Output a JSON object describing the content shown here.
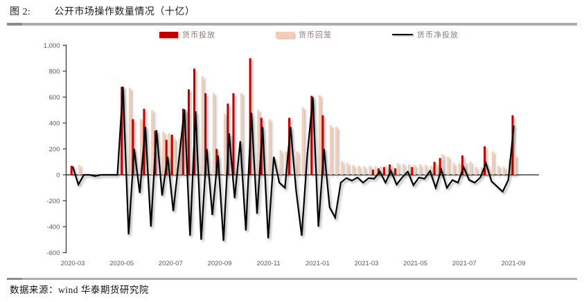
{
  "header": {
    "figure_label": "图 2:",
    "title": "公开市场操作数量情况（十亿）"
  },
  "footer": {
    "source": "数据来源：wind 华泰期货研究院"
  },
  "legend": [
    {
      "label": "货币投放",
      "color": "#c00000",
      "type": "bar"
    },
    {
      "label": "货币回笼",
      "color": "#f4cdb4",
      "type": "bar"
    },
    {
      "label": "货币净投放",
      "color": "#000000",
      "type": "line"
    }
  ],
  "chart_data": {
    "type": "bar",
    "title": "公开市场操作数量情况（十亿）",
    "ylabel": "十亿",
    "xlabel": "",
    "ylim": [
      -600,
      1000
    ],
    "grid": false,
    "legend_position": "top",
    "axis_color": "#595959",
    "bar_color_injection": "#c00000",
    "bar_color_withdrawal": "#f4cdb4",
    "line_color_net": "#000000",
    "xticks": [
      "2020-03",
      "2020-05",
      "2020-07",
      "2020-09",
      "2020-11",
      "2021-01",
      "2021-03",
      "2021-05",
      "2021-07",
      "2021-09"
    ],
    "yticks": [
      1000,
      800,
      600,
      400,
      200,
      0,
      -200,
      -400,
      -600
    ],
    "ytick_labels": [
      "1,000",
      "800",
      "600",
      "400",
      "200",
      "0",
      "-200",
      "-400",
      "-600"
    ],
    "x": [
      "2020-03-06",
      "2020-03-13",
      "2020-03-20",
      "2020-03-27",
      "2020-04-03",
      "2020-04-10",
      "2020-04-17",
      "2020-04-24",
      "2020-05-01",
      "2020-05-08",
      "2020-05-15",
      "2020-05-22",
      "2020-05-29",
      "2020-06-05",
      "2020-06-12",
      "2020-06-19",
      "2020-06-26",
      "2020-07-03",
      "2020-07-10",
      "2020-07-17",
      "2020-07-24",
      "2020-07-31",
      "2020-08-07",
      "2020-08-14",
      "2020-08-21",
      "2020-08-28",
      "2020-09-04",
      "2020-09-11",
      "2020-09-18",
      "2020-09-25",
      "2020-10-02",
      "2020-10-09",
      "2020-10-16",
      "2020-10-23",
      "2020-10-30",
      "2020-11-06",
      "2020-11-13",
      "2020-11-20",
      "2020-11-27",
      "2020-12-04",
      "2020-12-11",
      "2020-12-18",
      "2020-12-25",
      "2021-01-01",
      "2021-01-08",
      "2021-01-15",
      "2021-01-22",
      "2021-01-29",
      "2021-02-05",
      "2021-02-12",
      "2021-02-19",
      "2021-02-26",
      "2021-03-05",
      "2021-03-12",
      "2021-03-19",
      "2021-03-26",
      "2021-04-02",
      "2021-04-09",
      "2021-04-16",
      "2021-04-23",
      "2021-04-30",
      "2021-05-07",
      "2021-05-14",
      "2021-05-21",
      "2021-05-28",
      "2021-06-04",
      "2021-06-11",
      "2021-06-18",
      "2021-06-25",
      "2021-07-02",
      "2021-07-09",
      "2021-07-16",
      "2021-07-23",
      "2021-07-30",
      "2021-08-06",
      "2021-08-13",
      "2021-08-20",
      "2021-08-27",
      "2021-09-03",
      "2021-09-10"
    ],
    "series": [
      {
        "name": "货币投放",
        "type": "bar",
        "color": "#c00000",
        "values": [
          70,
          0,
          0,
          0,
          0,
          0,
          0,
          0,
          0,
          680,
          0,
          430,
          0,
          510,
          0,
          340,
          0,
          270,
          310,
          0,
          510,
          660,
          820,
          0,
          630,
          0,
          200,
          0,
          550,
          630,
          0,
          0,
          900,
          0,
          440,
          0,
          0,
          0,
          0,
          440,
          0,
          0,
          0,
          610,
          0,
          460,
          0,
          0,
          0,
          0,
          0,
          0,
          0,
          0,
          40,
          50,
          60,
          80,
          50,
          0,
          0,
          60,
          0,
          0,
          0,
          100,
          130,
          0,
          0,
          0,
          150,
          0,
          0,
          0,
          220,
          0,
          0,
          0,
          0,
          460
        ]
      },
      {
        "name": "货币回笼",
        "type": "bar",
        "color": "#f4cdb4",
        "values": [
          0,
          75,
          0,
          0,
          10,
          0,
          0,
          0,
          0,
          0,
          670,
          0,
          430,
          0,
          500,
          0,
          330,
          320,
          280,
          280,
          500,
          0,
          0,
          760,
          0,
          630,
          0,
          470,
          0,
          0,
          630,
          0,
          0,
          500,
          0,
          430,
          0,
          190,
          180,
          0,
          180,
          520,
          0,
          0,
          615,
          0,
          380,
          370,
          105,
          90,
          75,
          70,
          65,
          70,
          65,
          65,
          70,
          65,
          90,
          85,
          80,
          75,
          80,
          75,
          70,
          80,
          160,
          140,
          90,
          90,
          100,
          100,
          60,
          60,
          60,
          180,
          70,
          60,
          120,
          150
        ]
      },
      {
        "name": "货币净投放",
        "type": "line",
        "color": "#000000",
        "values": [
          65,
          -75,
          0,
          0,
          -10,
          0,
          0,
          0,
          0,
          680,
          -460,
          200,
          -140,
          370,
          -400,
          345,
          -160,
          140,
          -280,
          110,
          505,
          -470,
          490,
          -500,
          200,
          -310,
          150,
          -510,
          320,
          -180,
          260,
          -430,
          480,
          -300,
          370,
          -490,
          140,
          -60,
          -100,
          370,
          -120,
          -470,
          150,
          600,
          -400,
          200,
          -250,
          -330,
          -60,
          -25,
          -45,
          -20,
          -60,
          -25,
          -30,
          25,
          -60,
          30,
          -75,
          -20,
          25,
          -80,
          -20,
          -30,
          30,
          -100,
          40,
          -100,
          -40,
          -60,
          60,
          -40,
          -60,
          -20,
          90,
          -50,
          -90,
          -130,
          -40,
          380
        ]
      }
    ]
  }
}
